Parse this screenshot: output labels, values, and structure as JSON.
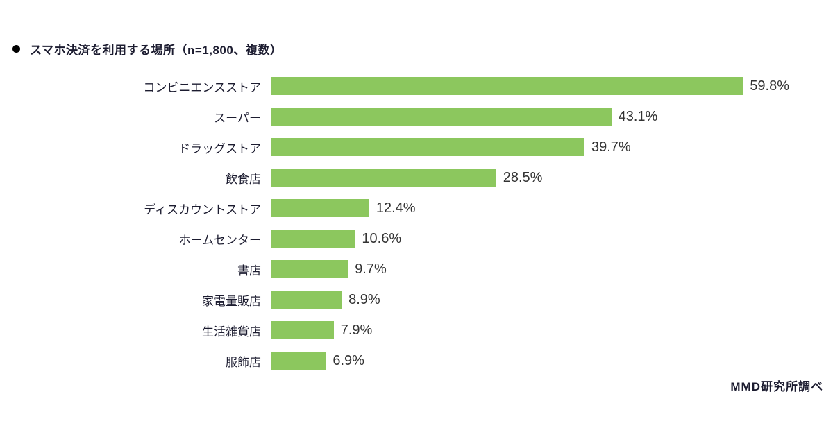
{
  "header": {
    "bullet": "●",
    "title": "スマホ決済を利用する場所（n=1,800、複数）"
  },
  "chart_data": {
    "type": "bar",
    "orientation": "horizontal",
    "title": "スマホ決済を利用する場所（n=1,800、複数）",
    "categories": [
      "コンビニエンスストア",
      "スーパー",
      "ドラッグストア",
      "飲食店",
      "ディスカウントストア",
      "ホームセンター",
      "書店",
      "家電量販店",
      "生活雑貨店",
      "服飾店"
    ],
    "values": [
      59.8,
      43.1,
      39.7,
      28.5,
      12.4,
      10.6,
      9.7,
      8.9,
      7.9,
      6.9
    ],
    "value_labels": [
      "59.8%",
      "43.1%",
      "39.7%",
      "28.5%",
      "12.4%",
      "10.6%",
      "9.7%",
      "8.9%",
      "7.9%",
      "6.9%"
    ],
    "xlabel": "",
    "ylabel": "",
    "xlim": [
      0,
      100
    ],
    "grid": false,
    "legend": false,
    "bar_color": "#8cc75e",
    "axis_line_color": "#a6a6a6"
  },
  "footer": {
    "source": "MMD研究所調べ"
  }
}
